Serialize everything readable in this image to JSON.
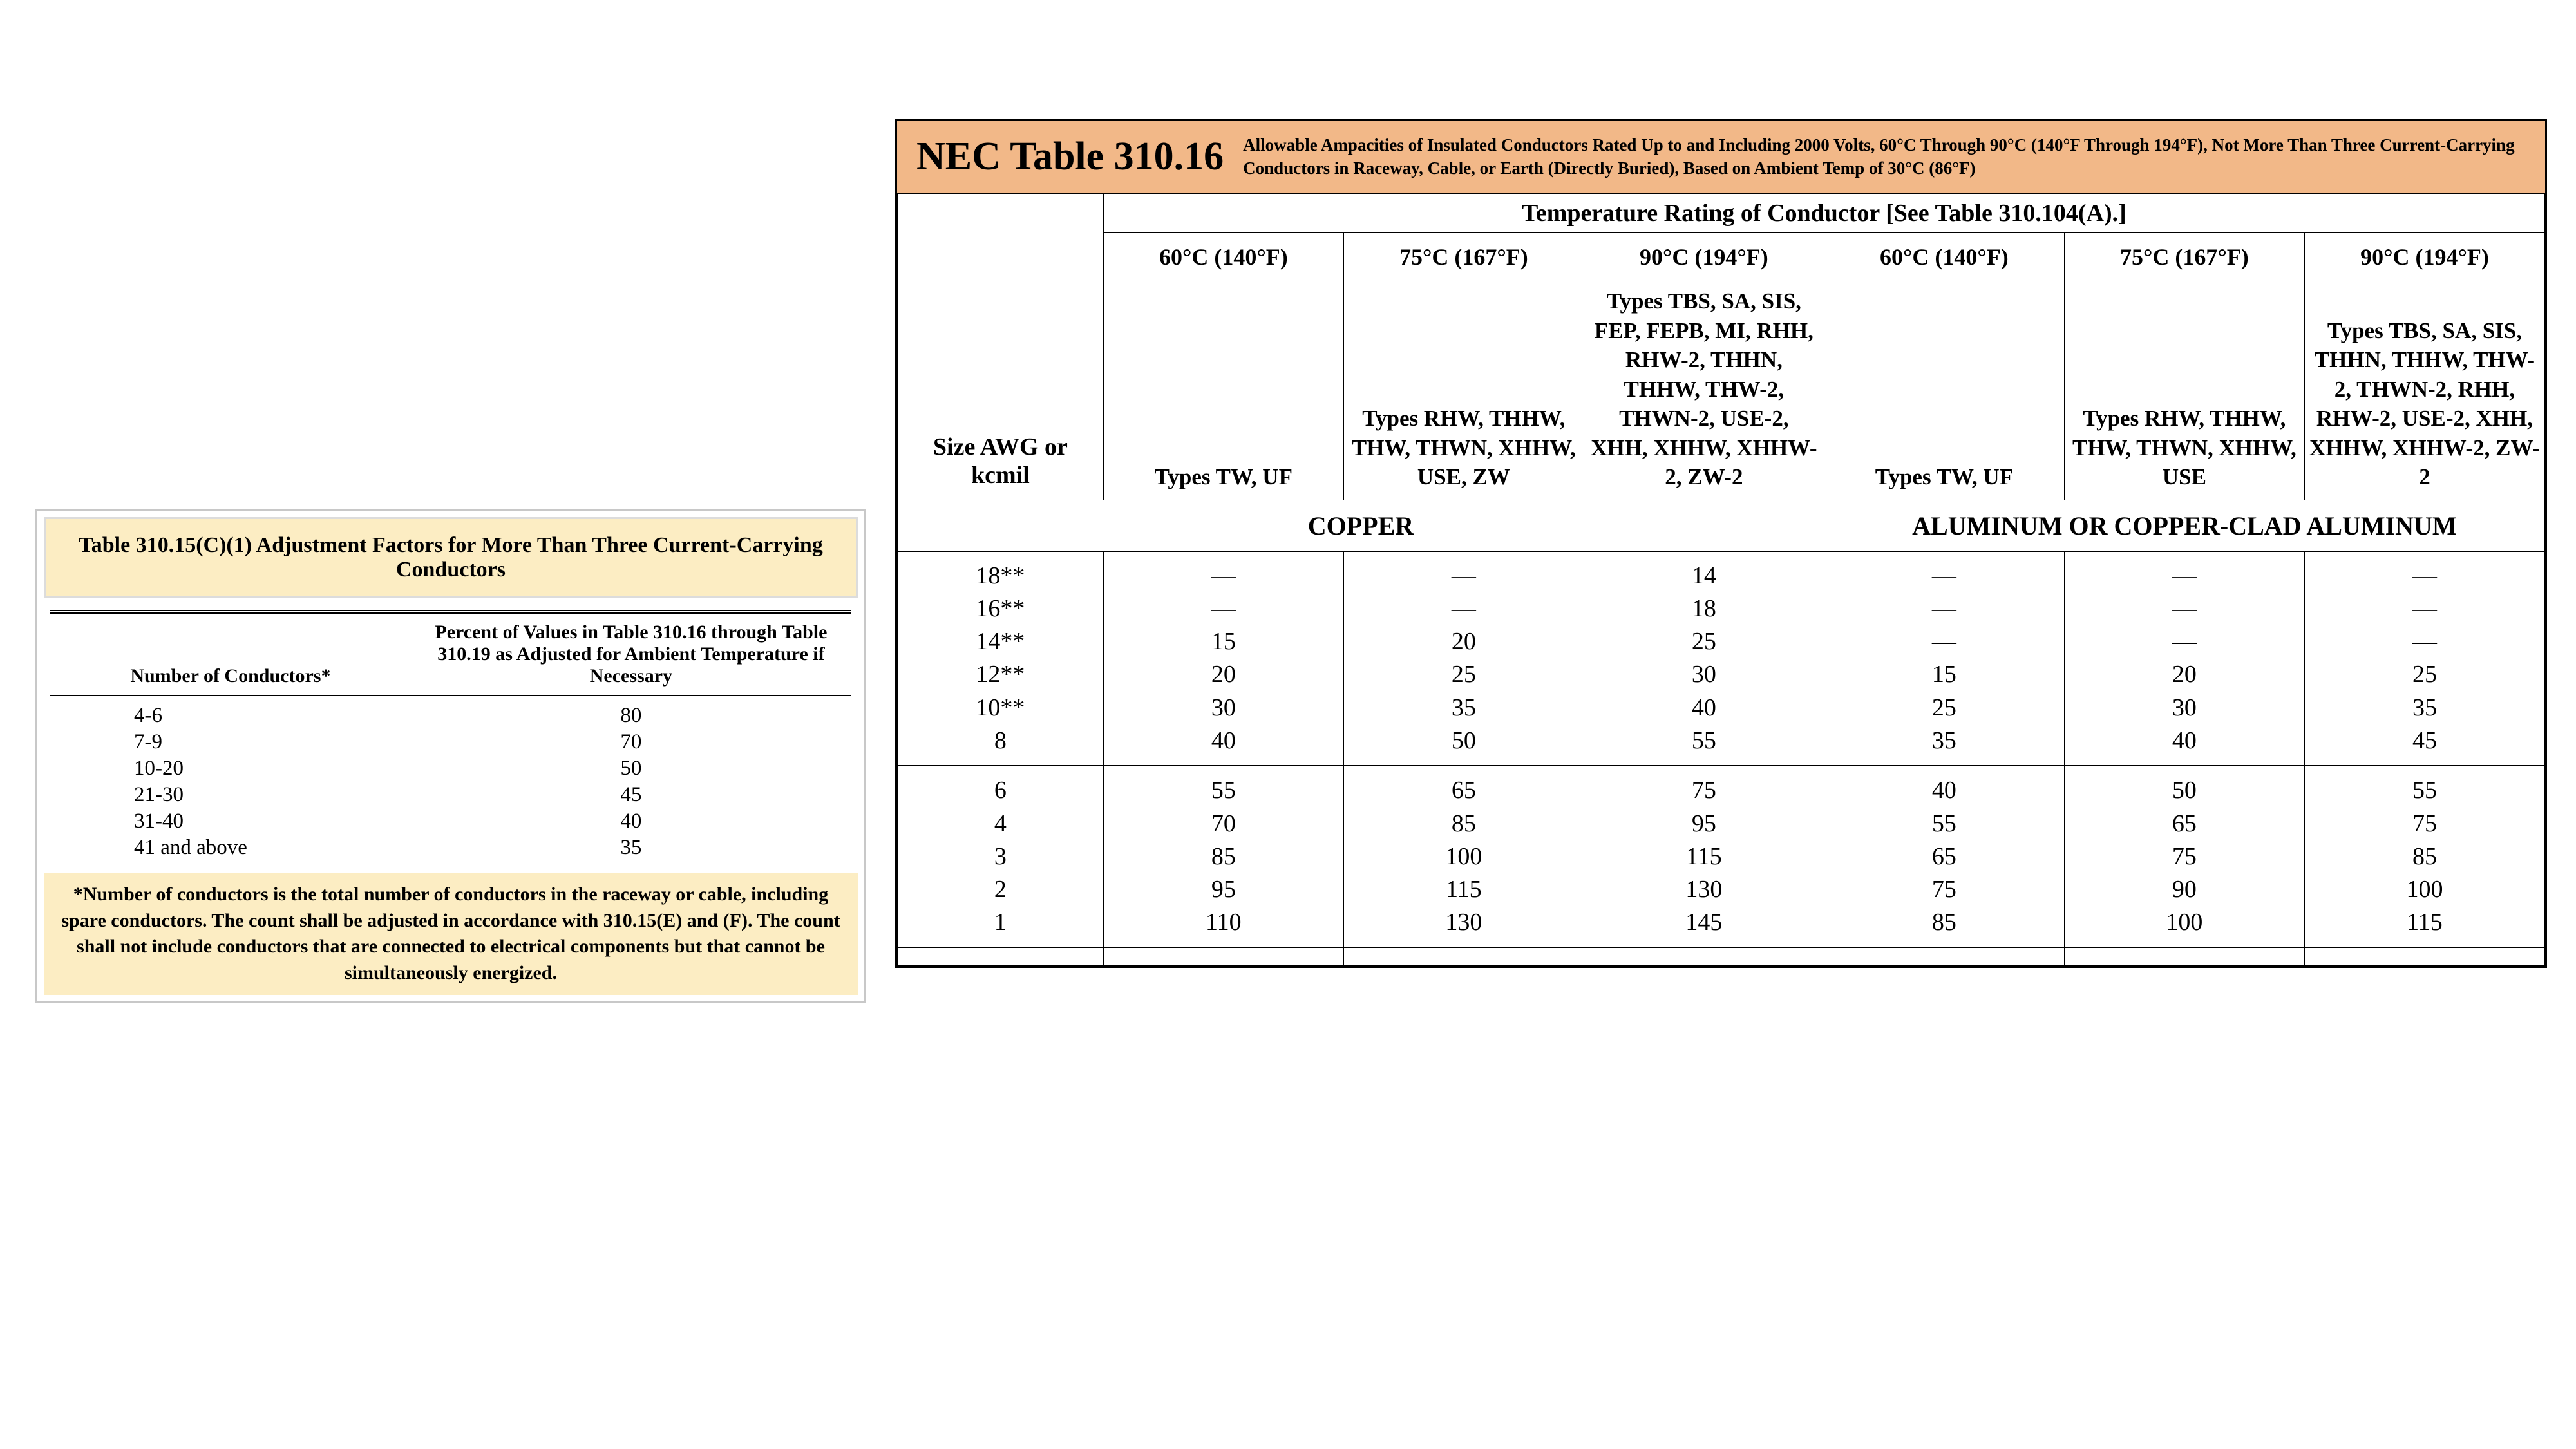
{
  "colors": {
    "title_bg": "#f2b888",
    "highlight_bg": "#fcedc3",
    "border": "#000000",
    "panel_border": "#c8c8c8",
    "page_bg": "#ffffff"
  },
  "leftTable": {
    "title": "Table 310.15(C)(1) Adjustment Factors for More Than Three Current-Carrying Conductors",
    "col1_header": "Number of Conductors*",
    "col2_header": "Percent of Values in Table 310.16 through Table 310.19 as Adjusted for Ambient Temperature if Necessary",
    "rows": [
      {
        "n": "4-6",
        "p": "80"
      },
      {
        "n": "7-9",
        "p": "70"
      },
      {
        "n": "10-20",
        "p": "50"
      },
      {
        "n": "21-30",
        "p": "45"
      },
      {
        "n": "31-40",
        "p": "40"
      },
      {
        "n": "41 and above",
        "p": "35"
      }
    ],
    "footnote": "*Number of conductors is the total number of conductors in the raceway or cable, including spare conductors. The count shall be adjusted in accordance with 310.15(E) and (F). The count shall not include conductors that are connected to electrical components but that cannot be simultaneously energized."
  },
  "rightTable": {
    "title": "NEC Table 310.16",
    "description": "Allowable Ampacities of Insulated Conductors Rated Up to and Including 2000 Volts, 60°C Through 90°C (140°F Through 194°F), Not More Than Three Current-Carrying Conductors in Raceway, Cable, or Earth (Directly Buried), Based on Ambient Temp of 30°C (86°F)",
    "temp_header": "Temperature Rating of Conductor [See Table 310.104(A).]",
    "size_header": "Size AWG or kcmil",
    "temp_cols": [
      "60°C (140°F)",
      "75°C (167°F)",
      "90°C (194°F)",
      "60°C (140°F)",
      "75°C (167°F)",
      "90°C (194°F)"
    ],
    "type_cols": [
      "Types TW, UF",
      "Types RHW, THHW, THW, THWN, XHHW, USE, ZW",
      "Types TBS, SA, SIS, FEP, FEPB, MI, RHH, RHW-2, THHN, THHW, THW-2, THWN-2, USE-2, XHH, XHHW, XHHW-2, ZW-2",
      "Types TW, UF",
      "Types RHW, THHW, THW, THWN, XHHW, USE",
      "Types TBS, SA, SIS, THHN, THHW, THW-2, THWN-2, RHH, RHW-2, USE-2, XHH, XHHW, XHHW-2, ZW-2"
    ],
    "material_labels": [
      "COPPER",
      "ALUMINUM OR COPPER-CLAD ALUMINUM"
    ],
    "block1": {
      "sizes": [
        "18**",
        "16**",
        "14**",
        "12**",
        "10**",
        "8"
      ],
      "cols": [
        [
          "—",
          "—",
          "15",
          "20",
          "30",
          "40"
        ],
        [
          "—",
          "—",
          "20",
          "25",
          "35",
          "50"
        ],
        [
          "14",
          "18",
          "25",
          "30",
          "40",
          "55"
        ],
        [
          "—",
          "—",
          "—",
          "15",
          "25",
          "35"
        ],
        [
          "—",
          "—",
          "—",
          "20",
          "30",
          "40"
        ],
        [
          "—",
          "—",
          "—",
          "25",
          "35",
          "45"
        ]
      ]
    },
    "block2": {
      "sizes": [
        "6",
        "4",
        "3",
        "2",
        "1"
      ],
      "cols": [
        [
          "55",
          "70",
          "85",
          "95",
          "110"
        ],
        [
          "65",
          "85",
          "100",
          "115",
          "130"
        ],
        [
          "75",
          "95",
          "115",
          "130",
          "145"
        ],
        [
          "40",
          "55",
          "65",
          "75",
          "85"
        ],
        [
          "50",
          "65",
          "75",
          "90",
          "100"
        ],
        [
          "55",
          "75",
          "85",
          "100",
          "115"
        ]
      ]
    }
  }
}
